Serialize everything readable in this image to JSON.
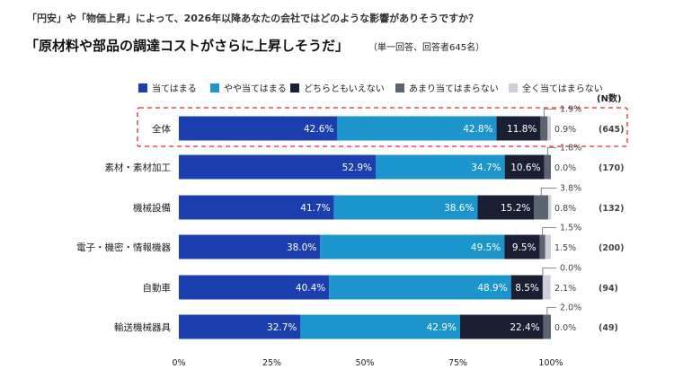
{
  "question": "「円安」や「物価上昇」によって、2026年以降あなたの会社ではどのような影響がありそうですか？",
  "headline": "「原材料や部品の調達コストがさらに上昇しそうだ」",
  "sample_note": "（単一回答、回答者645名）",
  "n_header": "(N数)",
  "colors": {
    "s1": "#1b3fae",
    "s2": "#1b95cc",
    "s3": "#1b1f33",
    "s4": "#5c6470",
    "s5": "#cdd0d6",
    "highlight": "#e0262c"
  },
  "chart_data": {
    "type": "bar",
    "orientation": "horizontal",
    "stacked": true,
    "xlim": [
      0,
      100
    ],
    "xticks": [
      "0%",
      "25%",
      "50%",
      "75%",
      "100%"
    ],
    "grid": false,
    "legend_position": "top",
    "categories": [
      "全体",
      "素材・素材加工",
      "機械設備",
      "電子・機密・情報機器",
      "自動車",
      "輸送機械器具"
    ],
    "n_labels": [
      "(645)",
      "(170)",
      "(132)",
      "(200)",
      "(94)",
      "(49)"
    ],
    "highlighted_category": "全体",
    "series": [
      {
        "name": "当てはまる",
        "values": [
          42.6,
          52.9,
          41.7,
          38.0,
          40.4,
          32.7
        ],
        "labels": [
          "42.6%",
          "52.9%",
          "41.7%",
          "38.0%",
          "40.4%",
          "32.7%"
        ]
      },
      {
        "name": "やや当てはまる",
        "values": [
          42.8,
          34.7,
          38.6,
          49.5,
          48.9,
          42.9
        ],
        "labels": [
          "42.8%",
          "34.7%",
          "38.6%",
          "49.5%",
          "48.9%",
          "42.9%"
        ]
      },
      {
        "name": "どちらともいえない",
        "values": [
          11.8,
          10.6,
          15.2,
          9.5,
          8.5,
          22.4
        ],
        "labels": [
          "11.8%",
          "10.6%",
          "15.2%",
          "9.5%",
          "8.5%",
          "22.4%"
        ]
      },
      {
        "name": "あまり当てはまらない",
        "values": [
          1.9,
          1.8,
          3.8,
          1.5,
          0.0,
          2.0
        ],
        "labels": [
          "1.9%",
          "1.8%",
          "3.8%",
          "1.5%",
          "0.0%",
          "2.0%"
        ]
      },
      {
        "name": "全く当てはまらない",
        "values": [
          0.9,
          0.0,
          0.8,
          1.5,
          2.1,
          0.0
        ],
        "labels": [
          "0.9%",
          "0.0%",
          "0.8%",
          "1.5%",
          "2.1%",
          "0.0%"
        ]
      }
    ]
  }
}
